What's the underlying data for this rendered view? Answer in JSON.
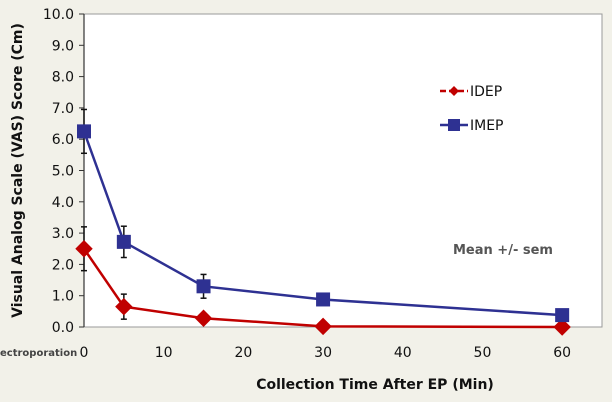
{
  "chart_data": {
    "type": "line",
    "xlabel": "Collection Time After EP (Min)",
    "ylabel": "Visual Analog Scale (VAS) Score (Cm)",
    "xlim": [
      0,
      65
    ],
    "ylim": [
      0,
      10
    ],
    "x_ticks": [
      0,
      10,
      20,
      30,
      40,
      50,
      60
    ],
    "y_ticks": [
      "0.0",
      "1.0",
      "2.0",
      "3.0",
      "4.0",
      "5.0",
      "6.0",
      "7.0",
      "8.0",
      "9.0",
      "10.0"
    ],
    "grid": false,
    "legend_position": "right",
    "annotation": "Mean +/- sem",
    "footnote": "ectroporation",
    "series": [
      {
        "name": "IDEP",
        "color": "#c00000",
        "marker": "diamond",
        "x": [
          0,
          5,
          15,
          30,
          60
        ],
        "y": [
          2.5,
          0.65,
          0.28,
          0.02,
          0.0
        ],
        "err": [
          0.7,
          0.4,
          0.1,
          0.02,
          0.02
        ]
      },
      {
        "name": "IMEP",
        "color": "#2e3192",
        "marker": "square",
        "x": [
          0,
          5,
          15,
          30,
          60
        ],
        "y": [
          6.25,
          2.72,
          1.3,
          0.88,
          0.38
        ],
        "err": [
          0.7,
          0.5,
          0.38,
          0.05,
          0.05
        ]
      }
    ]
  }
}
